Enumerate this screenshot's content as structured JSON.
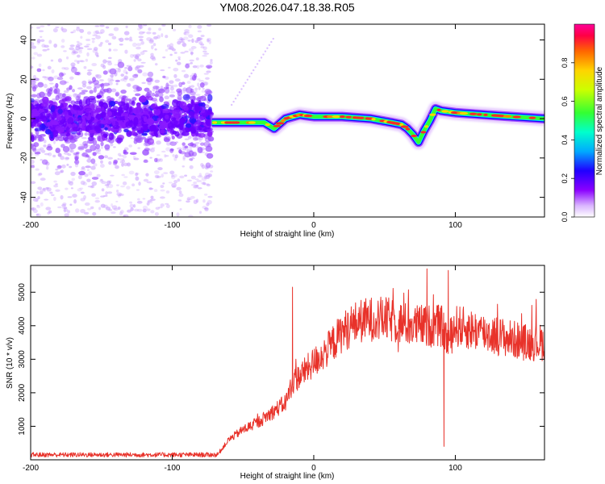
{
  "chart_data": [
    {
      "type": "heatmap",
      "title": "YM08.2026.047.18.38.R05",
      "xlabel": "Height of straight line (km)",
      "ylabel": "Frequency (Hz)",
      "xlim": [
        -200,
        163
      ],
      "ylim": [
        -50,
        48
      ],
      "x_ticks": [
        "-200",
        "-100",
        "0",
        "100"
      ],
      "y_ticks": [
        "-40",
        "-20",
        "0",
        "20",
        "40"
      ],
      "x_tick_values": [
        -200,
        -100,
        0,
        100
      ],
      "y_tick_values": [
        -40,
        -20,
        0,
        20,
        40
      ],
      "noise_region_end_km": -72,
      "trace": {
        "x": [
          -72,
          -60,
          -45,
          -35,
          -28,
          -20,
          -10,
          0,
          20,
          40,
          55,
          62,
          66,
          70,
          74,
          78,
          82,
          86,
          90,
          100,
          120,
          140,
          163
        ],
        "y": [
          -2,
          -2,
          -2,
          -2,
          -5,
          0,
          2,
          1,
          1,
          0,
          -2,
          -3,
          -5,
          -8,
          -12,
          -6,
          -1,
          5,
          4,
          3,
          2,
          1,
          0
        ]
      },
      "colorbar": {
        "label": "Normalized spectral amplitude",
        "ticks": [
          "0.0",
          "0.2",
          "0.4",
          "0.6",
          "0.8"
        ],
        "tick_values": [
          0.0,
          0.2,
          0.4,
          0.6,
          0.8
        ],
        "range": [
          0,
          1
        ]
      }
    },
    {
      "type": "line",
      "xlabel": "Height of straight line (km)",
      "ylabel": "SNR (10 * v/v)",
      "xlim": [
        -200,
        163
      ],
      "ylim": [
        0,
        5800
      ],
      "x_ticks": [
        "-200",
        "-100",
        "0",
        "100"
      ],
      "y_ticks": [
        "1000",
        "2000",
        "3000",
        "4000",
        "5000"
      ],
      "x_tick_values": [
        -200,
        -100,
        0,
        100
      ],
      "y_tick_values": [
        1000,
        2000,
        3000,
        4000,
        5000
      ],
      "line_color": "#e8322a",
      "series": [
        {
          "name": "SNR",
          "x": [
            -200,
            -150,
            -100,
            -68,
            -60,
            -50,
            -40,
            -30,
            -20,
            -15,
            -10,
            0,
            10,
            20,
            30,
            40,
            50,
            60,
            70,
            80,
            90,
            95,
            100,
            110,
            120,
            130,
            140,
            150,
            163
          ],
          "y": [
            150,
            150,
            150,
            150,
            600,
            900,
            1100,
            1400,
            1700,
            2300,
            2500,
            2900,
            3300,
            3800,
            4100,
            4200,
            4200,
            4100,
            4000,
            4000,
            4000,
            3500,
            4000,
            3900,
            3800,
            3700,
            3600,
            3500,
            3500
          ]
        }
      ],
      "spikes": [
        {
          "x": -15,
          "y": 5150
        },
        {
          "x": 80,
          "y": 5700
        },
        {
          "x": 92,
          "y": 400
        },
        {
          "x": 95,
          "y": 5650
        }
      ]
    }
  ]
}
